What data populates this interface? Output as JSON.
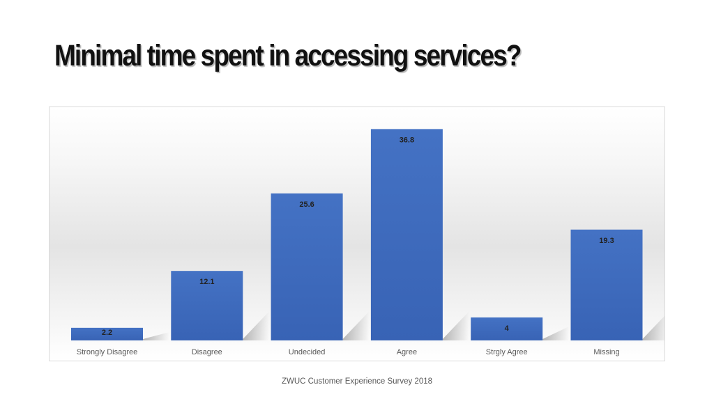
{
  "slide": {
    "title": "Minimal time spent in accessing services?",
    "footer": "ZWUC Customer Experience Survey 2018"
  },
  "colors": {
    "bar_top": "#4472c4",
    "bar_bottom": "#3863b5",
    "label_text": "#222222",
    "axis_text": "#595959"
  },
  "chart_data": {
    "type": "bar",
    "title": "Minimal time spent in accessing services?",
    "xlabel": "",
    "ylabel": "",
    "categories": [
      "Strongly Disagree",
      "Disagree",
      "Undecided",
      "Agree",
      "Strgly Agree",
      "Missing"
    ],
    "values": [
      2.2,
      12.1,
      25.6,
      36.8,
      4,
      19.3
    ],
    "data_labels": [
      "2.2",
      "12.1",
      "25.6",
      "36.8",
      "4",
      "19.3"
    ],
    "ylim": [
      0,
      40
    ],
    "grid": false,
    "legend": "none"
  }
}
